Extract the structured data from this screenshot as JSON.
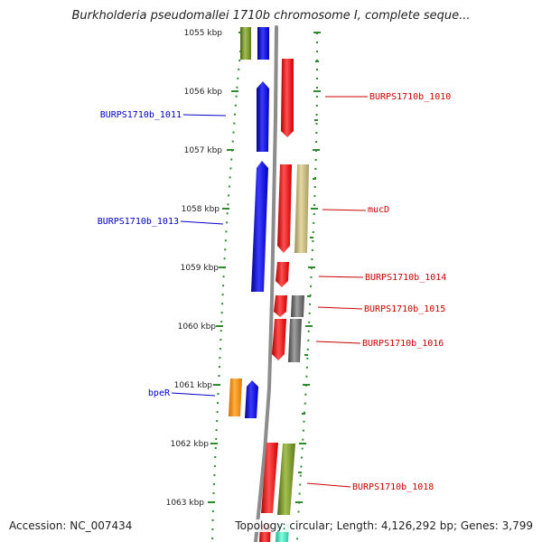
{
  "title": "Burkholderia pseudomallei 1710b chromosome I, complete seque...",
  "accession_label": "Accession: NC_007434",
  "topology_label": "Topology: circular; Length: 4,126,292 bp; Genes: 3,799",
  "colors": {
    "backbone": "#8c8c8c",
    "ruler": "#2e8b2e",
    "left_label": "#0000c8",
    "right_label": "#cc0000",
    "blue": "#0000f0",
    "red": "#ff0000",
    "olive": "#6b8e23",
    "tan": "#bdb076",
    "gray": "#6e6e6e",
    "orange": "#ff8c00",
    "teal": "#40e0c0"
  },
  "ruler_labels": [
    "1055 kbp",
    "1056 kbp",
    "1057 kbp",
    "1058 kbp",
    "1059 kbp",
    "1060 kbp",
    "1061 kbp",
    "1062 kbp",
    "1063 kbp"
  ],
  "gene_labels": [
    {
      "text": "BURPS1710b_1010",
      "side": "right",
      "color": "red"
    },
    {
      "text": "BURPS1710b_1011",
      "side": "left",
      "color": "blue"
    },
    {
      "text": "BURPS1710b_1013",
      "side": "left",
      "color": "blue"
    },
    {
      "text": "mucD",
      "side": "right",
      "color": "red"
    },
    {
      "text": "BURPS1710b_1014",
      "side": "right",
      "color": "red"
    },
    {
      "text": "BURPS1710b_1015",
      "side": "right",
      "color": "red"
    },
    {
      "text": "BURPS1710b_1016",
      "side": "right",
      "color": "red"
    },
    {
      "text": "bpeR",
      "side": "left",
      "color": "blue"
    },
    {
      "text": "BURPS1710b_1018",
      "side": "right",
      "color": "red"
    }
  ]
}
